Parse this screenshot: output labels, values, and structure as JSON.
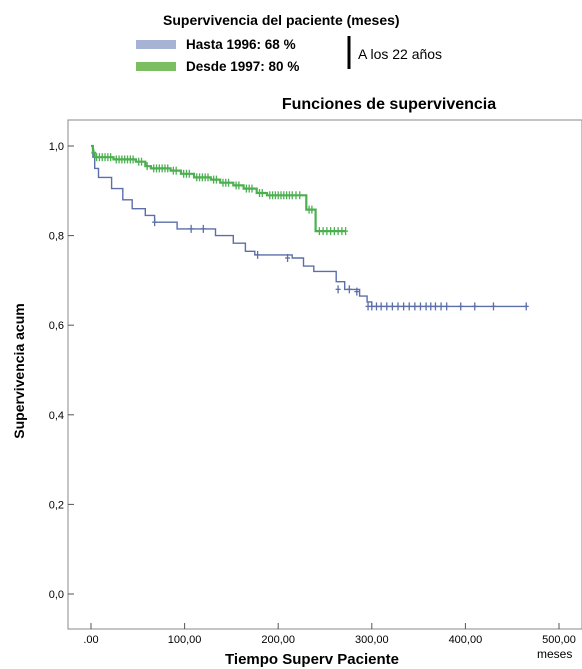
{
  "chart_data": {
    "type": "line",
    "subtype": "kaplan-meier",
    "title": "Funciones de supervivencia",
    "xlabel": "Tiempo Superv Paciente",
    "ylabel": "Supervivencia acum",
    "x_unit_note": "meses",
    "xlim": [
      0,
      500
    ],
    "ylim": [
      0,
      1
    ],
    "x_ticks": [
      ".00",
      "100,00",
      "200,00",
      "300,00",
      "400,00",
      "500,00"
    ],
    "y_ticks": [
      "0,0",
      "0,2",
      "0,4",
      "0,6",
      "0,8",
      "1,0"
    ],
    "grid": false,
    "legend": {
      "header": "Supervivencia del paciente (meses)",
      "note": "A los 22 años",
      "placement": "top"
    },
    "series": [
      {
        "name": "Hasta 1996: 68 %",
        "color": "#5b6fa9",
        "steps": [
          [
            0,
            1.0
          ],
          [
            2,
            0.975
          ],
          [
            4,
            0.95
          ],
          [
            8,
            0.93
          ],
          [
            22,
            0.905
          ],
          [
            34,
            0.88
          ],
          [
            44,
            0.86
          ],
          [
            58,
            0.845
          ],
          [
            68,
            0.83
          ],
          [
            92,
            0.815
          ],
          [
            133,
            0.8
          ],
          [
            152,
            0.783
          ],
          [
            165,
            0.765
          ],
          [
            175,
            0.757
          ],
          [
            215,
            0.75
          ],
          [
            227,
            0.732
          ],
          [
            238,
            0.72
          ],
          [
            262,
            0.697
          ],
          [
            271,
            0.68
          ],
          [
            287,
            0.665
          ],
          [
            295,
            0.652
          ],
          [
            300,
            0.642
          ],
          [
            465,
            0.642
          ]
        ],
        "censored": [
          [
            68,
            0.83
          ],
          [
            107,
            0.815
          ],
          [
            120,
            0.815
          ],
          [
            178,
            0.757
          ],
          [
            210,
            0.75
          ],
          [
            264,
            0.68
          ],
          [
            276,
            0.68
          ],
          [
            284,
            0.675
          ],
          [
            296,
            0.642
          ],
          [
            300,
            0.642
          ],
          [
            305,
            0.642
          ],
          [
            310,
            0.642
          ],
          [
            316,
            0.642
          ],
          [
            322,
            0.642
          ],
          [
            328,
            0.642
          ],
          [
            334,
            0.642
          ],
          [
            340,
            0.642
          ],
          [
            346,
            0.642
          ],
          [
            352,
            0.642
          ],
          [
            358,
            0.642
          ],
          [
            363,
            0.642
          ],
          [
            368,
            0.642
          ],
          [
            374,
            0.642
          ],
          [
            380,
            0.642
          ],
          [
            395,
            0.642
          ],
          [
            410,
            0.642
          ],
          [
            430,
            0.642
          ],
          [
            465,
            0.642
          ]
        ]
      },
      {
        "name": "Desde 1997: 80 %",
        "color": "#4caf50",
        "steps": [
          [
            0,
            1.0
          ],
          [
            2,
            0.985
          ],
          [
            4,
            0.975
          ],
          [
            24,
            0.97
          ],
          [
            48,
            0.965
          ],
          [
            58,
            0.955
          ],
          [
            64,
            0.95
          ],
          [
            85,
            0.945
          ],
          [
            96,
            0.938
          ],
          [
            110,
            0.93
          ],
          [
            128,
            0.925
          ],
          [
            138,
            0.918
          ],
          [
            152,
            0.912
          ],
          [
            163,
            0.905
          ],
          [
            177,
            0.895
          ],
          [
            188,
            0.89
          ],
          [
            230,
            0.858
          ],
          [
            240,
            0.81
          ],
          [
            272,
            0.81
          ]
        ],
        "censored": [
          [
            3,
            0.985
          ],
          [
            6,
            0.975
          ],
          [
            9,
            0.975
          ],
          [
            12,
            0.975
          ],
          [
            15,
            0.975
          ],
          [
            18,
            0.975
          ],
          [
            21,
            0.975
          ],
          [
            27,
            0.97
          ],
          [
            30,
            0.97
          ],
          [
            33,
            0.97
          ],
          [
            36,
            0.97
          ],
          [
            39,
            0.97
          ],
          [
            42,
            0.97
          ],
          [
            45,
            0.97
          ],
          [
            51,
            0.965
          ],
          [
            54,
            0.965
          ],
          [
            60,
            0.955
          ],
          [
            67,
            0.95
          ],
          [
            70,
            0.95
          ],
          [
            73,
            0.95
          ],
          [
            76,
            0.95
          ],
          [
            79,
            0.95
          ],
          [
            82,
            0.95
          ],
          [
            88,
            0.945
          ],
          [
            91,
            0.945
          ],
          [
            99,
            0.938
          ],
          [
            102,
            0.938
          ],
          [
            105,
            0.938
          ],
          [
            113,
            0.93
          ],
          [
            116,
            0.93
          ],
          [
            119,
            0.93
          ],
          [
            122,
            0.93
          ],
          [
            125,
            0.93
          ],
          [
            131,
            0.925
          ],
          [
            134,
            0.925
          ],
          [
            141,
            0.918
          ],
          [
            144,
            0.918
          ],
          [
            147,
            0.918
          ],
          [
            155,
            0.912
          ],
          [
            158,
            0.912
          ],
          [
            166,
            0.905
          ],
          [
            169,
            0.905
          ],
          [
            172,
            0.905
          ],
          [
            180,
            0.895
          ],
          [
            183,
            0.895
          ],
          [
            191,
            0.89
          ],
          [
            194,
            0.89
          ],
          [
            197,
            0.89
          ],
          [
            200,
            0.89
          ],
          [
            203,
            0.89
          ],
          [
            206,
            0.89
          ],
          [
            209,
            0.89
          ],
          [
            212,
            0.89
          ],
          [
            215,
            0.89
          ],
          [
            219,
            0.89
          ],
          [
            223,
            0.89
          ],
          [
            233,
            0.858
          ],
          [
            236,
            0.858
          ],
          [
            244,
            0.81
          ],
          [
            248,
            0.81
          ],
          [
            252,
            0.81
          ],
          [
            256,
            0.81
          ],
          [
            260,
            0.81
          ],
          [
            264,
            0.81
          ],
          [
            268,
            0.81
          ],
          [
            272,
            0.81
          ]
        ]
      }
    ]
  }
}
